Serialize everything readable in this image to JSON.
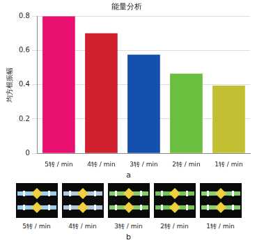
{
  "chart_data": {
    "type": "bar",
    "title": "能量分析",
    "y_label": "均方根振幅",
    "categories": [
      "5转 / min",
      "4转 / min",
      "3转 / min",
      "2转 / min",
      "1转 / min"
    ],
    "values": [
      0.8,
      0.7,
      0.575,
      0.465,
      0.395
    ],
    "colors": [
      "#e8116f",
      "#d0202e",
      "#1450ad",
      "#6bbf3e",
      "#c2c032"
    ],
    "ylim": [
      0,
      0.8
    ],
    "yticks": [
      0,
      0.2,
      0.4,
      0.6,
      0.8
    ],
    "grid": true
  },
  "figure": {
    "panel_labels": [
      "a",
      "b"
    ],
    "images": [
      {
        "caption": "5转 / min"
      },
      {
        "caption": "4转 / min"
      },
      {
        "caption": "3转 / min"
      },
      {
        "caption": "2转 / min"
      },
      {
        "caption": "1转 / min"
      }
    ]
  }
}
